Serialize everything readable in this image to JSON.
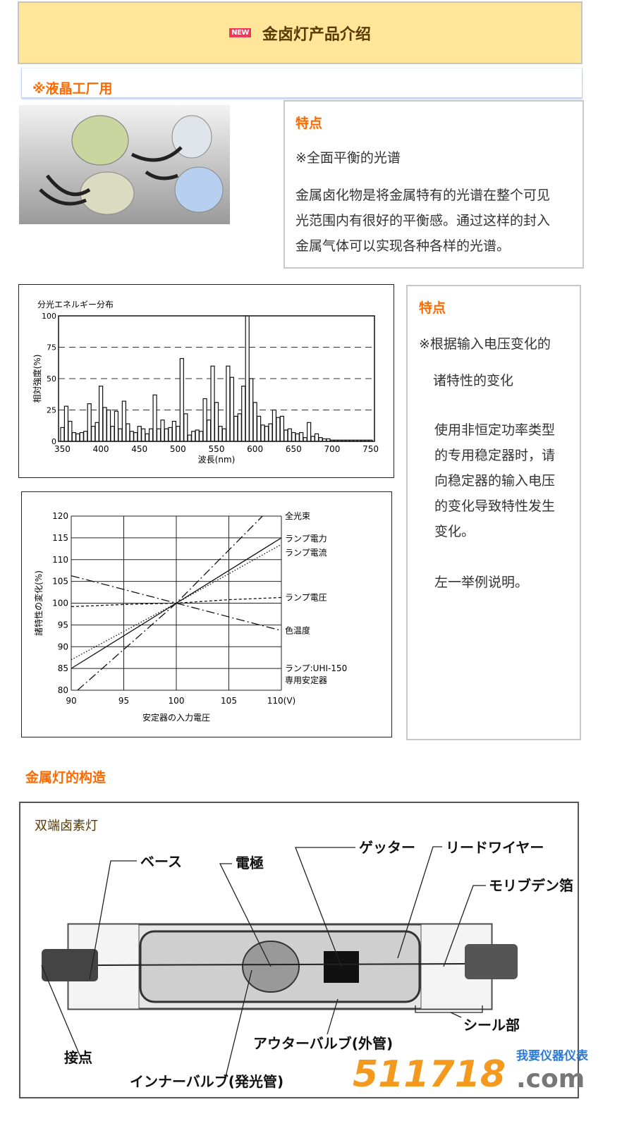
{
  "header": {
    "badge": "NEW",
    "title": "金卤灯产品介绍",
    "bg_color": "#FFE699"
  },
  "section1": {
    "title": "※液晶工厂用"
  },
  "feature1": {
    "heading": "特点",
    "subtitle": "※全面平衡的光谱",
    "lines": [
      "金属卤化物是将金属特有的光谱在整个可见",
      "光范围内有很好的平衡感。通过这样的封入",
      "金属气体可以实现各种各样的光谱。"
    ]
  },
  "feature2": {
    "heading": "特点",
    "subtitle_lines": [
      "※根据输入电压变化的",
      "诸特性的变化"
    ],
    "lines": [
      "使用非恒定功率类型",
      "的专用稳定器时，请",
      "向稳定器的输入电压",
      "的变化导致特性发生",
      "变化。"
    ],
    "note": "左一举例说明。"
  },
  "chart_data": [
    {
      "type": "bar",
      "title": "分光エネルギー分布",
      "xlabel": "波長(nm)",
      "ylabel": "相対強度(%)",
      "xlim": [
        345,
        755
      ],
      "ylim": [
        0,
        100
      ],
      "xticks": [
        350,
        400,
        450,
        500,
        550,
        600,
        650,
        700,
        750
      ],
      "yticks": [
        0,
        25,
        50,
        75,
        100
      ],
      "grid": "horizontal dashed",
      "x": [
        350,
        355,
        360,
        365,
        370,
        375,
        380,
        385,
        390,
        395,
        400,
        405,
        410,
        415,
        420,
        425,
        430,
        435,
        440,
        445,
        450,
        455,
        460,
        465,
        470,
        475,
        480,
        485,
        490,
        495,
        500,
        505,
        510,
        515,
        520,
        525,
        530,
        535,
        540,
        545,
        550,
        555,
        560,
        565,
        570,
        575,
        580,
        585,
        590,
        595,
        600,
        605,
        610,
        615,
        620,
        625,
        630,
        635,
        640,
        645,
        650,
        655,
        660,
        665,
        670,
        675,
        680,
        685,
        690,
        695,
        700,
        705,
        710,
        715,
        720,
        725,
        730,
        735,
        740,
        745,
        750
      ],
      "values": [
        11,
        28,
        16,
        7,
        6,
        7,
        8,
        30,
        12,
        15,
        44,
        27,
        25,
        12,
        24,
        10,
        32,
        14,
        8,
        7,
        12,
        10,
        6,
        10,
        37,
        10,
        17,
        10,
        11,
        16,
        12,
        66,
        22,
        5,
        8,
        9,
        8,
        34,
        17,
        60,
        31,
        12,
        10,
        60,
        51,
        20,
        22,
        44,
        100,
        50,
        31,
        20,
        13,
        12,
        14,
        25,
        19,
        20,
        9,
        10,
        7,
        6,
        7,
        3,
        15,
        4,
        6,
        3,
        2,
        2,
        1,
        1,
        1,
        1,
        1,
        1,
        1,
        1,
        1,
        1,
        1
      ]
    },
    {
      "type": "line",
      "xlabel": "安定器の入力電圧",
      "ylabel": "諸特性の変化(%)",
      "xunit": "(V)",
      "xlim": [
        90,
        110
      ],
      "ylim": [
        80,
        120
      ],
      "xticks": [
        90,
        95,
        100,
        105,
        110
      ],
      "yticks": [
        80,
        85,
        90,
        95,
        100,
        105,
        110,
        115,
        120
      ],
      "grid": "both",
      "note_lines": [
        "ランプ:UHI-150",
        "専用安定器"
      ],
      "series": [
        {
          "name": "全光束",
          "style": "dash-dot",
          "x": [
            90.6,
            100,
            108.2
          ],
          "y": [
            80,
            100,
            120
          ]
        },
        {
          "name": "ランプ電力",
          "style": "solid",
          "x": [
            90,
            100,
            110
          ],
          "y": [
            85,
            100,
            115
          ]
        },
        {
          "name": "ランプ電流",
          "style": "dotted",
          "x": [
            90,
            100,
            110
          ],
          "y": [
            87,
            100,
            113.5
          ]
        },
        {
          "name": "ランプ電圧",
          "style": "dashed",
          "x": [
            90,
            95,
            100,
            105,
            110
          ],
          "y": [
            99.2,
            99.7,
            100,
            100.8,
            101.3
          ]
        },
        {
          "name": "色温度",
          "style": "dash-dot",
          "x": [
            90,
            100,
            110
          ],
          "y": [
            106.3,
            100,
            93.7
          ]
        }
      ]
    }
  ],
  "structure": {
    "title": "金属灯的构造",
    "diagram_title": "双端卤素灯",
    "labels": {
      "base": "ベース",
      "electrode": "電極",
      "getter": "ゲッター",
      "lead": "リードワイヤー",
      "moly": "モリブデン箔",
      "contact": "接点",
      "inner": "インナーバルブ(発光管)",
      "outer": "アウターバルブ(外管)",
      "seal": "シール部"
    }
  },
  "watermark": {
    "number": "511718",
    "domain": ".com",
    "cn": "我要仪器仪表"
  },
  "colors": {
    "accent": "#ff6a00",
    "badge": "#f0385a"
  }
}
